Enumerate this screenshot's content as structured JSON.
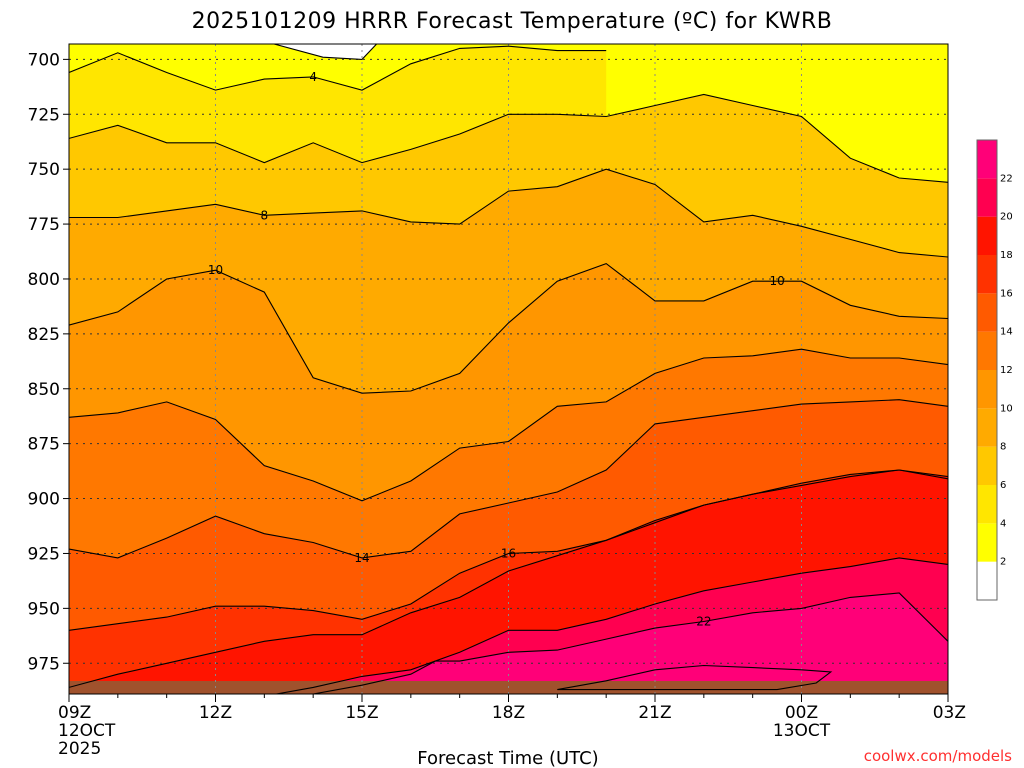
{
  "chart_data": {
    "type": "contour",
    "title": "2025101209 HRRR Forecast Temperature (ºC) for KWRB",
    "xlabel": "Forecast Time (UTC)",
    "ylabel": "",
    "credit": "coolwx.com/models",
    "x_hours": [
      0,
      1,
      2,
      3,
      4,
      5,
      6,
      7,
      8,
      9,
      10,
      11,
      12,
      13,
      14,
      15,
      16,
      17,
      18
    ],
    "x_ticks": [
      {
        "hour": 0,
        "lines": [
          "09Z",
          "12OCT",
          "2025"
        ]
      },
      {
        "hour": 3,
        "lines": [
          "12Z"
        ]
      },
      {
        "hour": 6,
        "lines": [
          "15Z"
        ]
      },
      {
        "hour": 9,
        "lines": [
          "18Z"
        ]
      },
      {
        "hour": 12,
        "lines": [
          "21Z"
        ]
      },
      {
        "hour": 15,
        "lines": [
          "00Z",
          "13OCT"
        ]
      },
      {
        "hour": 18,
        "lines": [
          "03Z"
        ]
      }
    ],
    "y_ticks": [
      700,
      725,
      750,
      775,
      800,
      825,
      850,
      875,
      900,
      925,
      950,
      975
    ],
    "ylim": [
      693,
      989
    ],
    "y_reversed": true,
    "grid": true,
    "colorbar": {
      "ticks": [
        2,
        4,
        6,
        8,
        10,
        12,
        14,
        16,
        18,
        20,
        22
      ],
      "bins": [
        {
          "min": 0,
          "max": 2,
          "color": "#ffffff"
        },
        {
          "min": 2,
          "max": 4,
          "color": "#ffff00"
        },
        {
          "min": 4,
          "max": 6,
          "color": "#ffe600"
        },
        {
          "min": 6,
          "max": 8,
          "color": "#ffc800"
        },
        {
          "min": 8,
          "max": 10,
          "color": "#ffaa00"
        },
        {
          "min": 10,
          "max": 12,
          "color": "#ff9600"
        },
        {
          "min": 12,
          "max": 14,
          "color": "#ff7800"
        },
        {
          "min": 14,
          "max": 16,
          "color": "#ff5a00"
        },
        {
          "min": 16,
          "max": 18,
          "color": "#ff3200"
        },
        {
          "min": 18,
          "max": 20,
          "color": "#ff1400"
        },
        {
          "min": 20,
          "max": 22,
          "color": "#ff0050"
        },
        {
          "min": 22,
          "max": 24,
          "color": "#ff0078"
        }
      ]
    },
    "contours": [
      {
        "level": 4,
        "label": "4",
        "label_hour": 5,
        "points": [
          [
            0,
            706
          ],
          [
            1,
            697
          ],
          [
            2,
            706
          ],
          [
            3,
            714
          ],
          [
            4,
            709
          ],
          [
            5,
            708
          ],
          [
            6,
            714
          ],
          [
            7,
            702
          ],
          [
            8,
            695
          ],
          [
            9,
            694
          ],
          [
            10,
            696
          ],
          [
            11,
            696
          ]
        ]
      },
      {
        "level": 6,
        "label": "",
        "points": [
          [
            0,
            736
          ],
          [
            1,
            730
          ],
          [
            2,
            738
          ],
          [
            3,
            738
          ],
          [
            4,
            747
          ],
          [
            5,
            738
          ],
          [
            6,
            747
          ],
          [
            7,
            741
          ],
          [
            8,
            734
          ],
          [
            9,
            725
          ],
          [
            10,
            725
          ],
          [
            11,
            726
          ],
          [
            12,
            721
          ],
          [
            13,
            716
          ],
          [
            14,
            721
          ],
          [
            15,
            726
          ],
          [
            16,
            745
          ],
          [
            17,
            754
          ],
          [
            18,
            756
          ]
        ]
      },
      {
        "level": 8,
        "label": "8",
        "label_hour": 4,
        "points": [
          [
            0,
            772
          ],
          [
            1,
            772
          ],
          [
            2,
            769
          ],
          [
            3,
            766
          ],
          [
            4,
            771
          ],
          [
            5,
            770
          ],
          [
            6,
            769
          ],
          [
            7,
            774
          ],
          [
            8,
            775
          ],
          [
            9,
            760
          ],
          [
            10,
            758
          ],
          [
            11,
            750
          ],
          [
            12,
            757
          ],
          [
            13,
            774
          ],
          [
            14,
            771
          ],
          [
            15,
            776
          ],
          [
            16,
            782
          ],
          [
            17,
            788
          ],
          [
            18,
            790
          ]
        ]
      },
      {
        "level": 10,
        "label": "10",
        "label_hour": 3,
        "label2": "10",
        "label2_hour": 14.5,
        "points": [
          [
            0,
            821
          ],
          [
            1,
            815
          ],
          [
            2,
            800
          ],
          [
            3,
            796
          ],
          [
            4,
            806
          ],
          [
            5,
            845
          ],
          [
            6,
            852
          ],
          [
            7,
            851
          ],
          [
            8,
            843
          ],
          [
            9,
            820
          ],
          [
            10,
            801
          ],
          [
            11,
            793
          ],
          [
            12,
            810
          ],
          [
            13,
            810
          ],
          [
            14,
            801
          ],
          [
            15,
            801
          ],
          [
            16,
            812
          ],
          [
            17,
            817
          ],
          [
            18,
            818
          ]
        ]
      },
      {
        "level": 12,
        "label": "",
        "points": [
          [
            0,
            863
          ],
          [
            1,
            861
          ],
          [
            2,
            856
          ],
          [
            3,
            864
          ],
          [
            4,
            885
          ],
          [
            5,
            892
          ],
          [
            6,
            901
          ],
          [
            7,
            892
          ],
          [
            8,
            877
          ],
          [
            9,
            874
          ],
          [
            10,
            858
          ],
          [
            11,
            856
          ],
          [
            12,
            843
          ],
          [
            13,
            836
          ],
          [
            14,
            835
          ],
          [
            15,
            832
          ],
          [
            16,
            836
          ],
          [
            17,
            836
          ],
          [
            18,
            839
          ]
        ]
      },
      {
        "level": 14,
        "label": "14",
        "label_hour": 6,
        "points": [
          [
            0,
            923
          ],
          [
            1,
            927
          ],
          [
            2,
            918
          ],
          [
            3,
            908
          ],
          [
            4,
            916
          ],
          [
            5,
            920
          ],
          [
            6,
            927
          ],
          [
            7,
            924
          ],
          [
            8,
            907
          ],
          [
            9,
            902
          ],
          [
            10,
            897
          ],
          [
            11,
            887
          ],
          [
            12,
            866
          ],
          [
            13,
            863
          ],
          [
            14,
            860
          ],
          [
            15,
            857
          ],
          [
            16,
            856
          ],
          [
            17,
            855
          ],
          [
            18,
            858
          ]
        ]
      },
      {
        "level": 16,
        "label": "16",
        "label_hour": 9,
        "points": [
          [
            0,
            960
          ],
          [
            1,
            957
          ],
          [
            2,
            954
          ],
          [
            3,
            949
          ],
          [
            4,
            949
          ],
          [
            5,
            951
          ],
          [
            6,
            955
          ],
          [
            7,
            948
          ],
          [
            8,
            934
          ],
          [
            9,
            925
          ],
          [
            10,
            924
          ],
          [
            11,
            919
          ],
          [
            12,
            911
          ],
          [
            13,
            903
          ],
          [
            14,
            898
          ],
          [
            15,
            893
          ],
          [
            16,
            889
          ],
          [
            17,
            887
          ],
          [
            18,
            891
          ]
        ]
      },
      {
        "level": 18,
        "label": "",
        "points": [
          [
            0,
            986
          ],
          [
            1,
            980
          ],
          [
            2,
            975
          ],
          [
            3,
            970
          ],
          [
            4,
            965
          ],
          [
            5,
            962
          ],
          [
            6,
            962
          ],
          [
            7,
            952
          ],
          [
            8,
            945
          ],
          [
            9,
            933
          ],
          [
            10,
            926
          ],
          [
            11,
            919
          ],
          [
            12,
            910
          ],
          [
            13,
            903
          ],
          [
            14,
            898
          ],
          [
            15,
            894
          ],
          [
            16,
            890
          ],
          [
            17,
            887
          ],
          [
            18,
            890
          ]
        ]
      },
      {
        "level": 20,
        "label": "",
        "points": [
          [
            0,
            994
          ],
          [
            1,
            994
          ],
          [
            2,
            992
          ],
          [
            3,
            992
          ],
          [
            4,
            990
          ],
          [
            5,
            986
          ],
          [
            6,
            981
          ],
          [
            7,
            978
          ],
          [
            8,
            970
          ],
          [
            9,
            960
          ],
          [
            10,
            960
          ],
          [
            11,
            955
          ],
          [
            12,
            948
          ],
          [
            13,
            942
          ],
          [
            14,
            938
          ],
          [
            15,
            934
          ],
          [
            16,
            931
          ],
          [
            17,
            927
          ],
          [
            18,
            930
          ]
        ]
      },
      {
        "level": 22,
        "label": "22",
        "label_hour": 13,
        "points": [
          [
            4.5,
            992
          ],
          [
            5,
            989
          ],
          [
            6,
            985
          ],
          [
            7,
            980
          ],
          [
            7.5,
            974
          ],
          [
            8,
            974
          ],
          [
            9,
            970
          ],
          [
            10,
            969
          ],
          [
            11,
            964
          ],
          [
            12,
            959
          ],
          [
            13,
            956
          ],
          [
            14,
            952
          ],
          [
            15,
            950
          ],
          [
            16,
            945
          ],
          [
            17,
            943
          ],
          [
            18,
            965
          ]
        ]
      }
    ],
    "inner_22": [
      [
        10,
        987
      ],
      [
        11,
        983
      ],
      [
        12,
        978
      ],
      [
        13,
        976
      ],
      [
        14,
        977
      ],
      [
        15,
        978
      ],
      [
        15.6,
        979
      ],
      [
        15.3,
        984
      ],
      [
        14.5,
        987
      ]
    ]
  }
}
